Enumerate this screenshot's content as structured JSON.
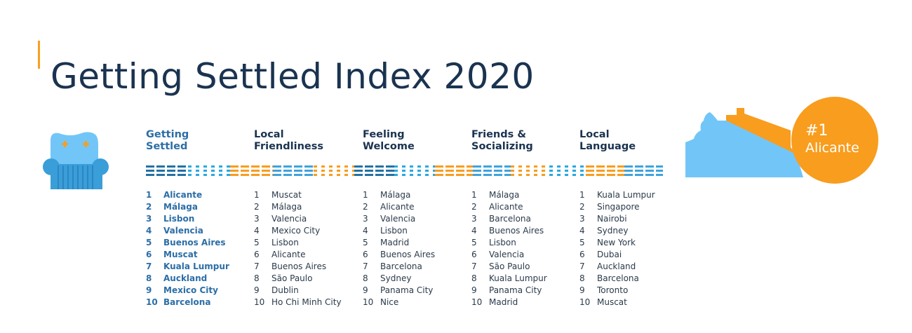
{
  "title": "Getting Settled Index 2020",
  "badge": {
    "rank": "#1",
    "city": "Alicante"
  },
  "colors": {
    "orange": "#f89d1e",
    "dark_blue": "#2471a3",
    "light_blue": "#29a9e0",
    "navy": "#1a3350"
  },
  "columns": [
    {
      "heading": [
        "Getting",
        "Settled"
      ],
      "items": [
        {
          "rank": "1",
          "city": "Alicante"
        },
        {
          "rank": "2",
          "city": "Málaga"
        },
        {
          "rank": "3",
          "city": "Lisbon"
        },
        {
          "rank": "4",
          "city": "Valencia"
        },
        {
          "rank": "5",
          "city": "Buenos Aires"
        },
        {
          "rank": "6",
          "city": "Muscat"
        },
        {
          "rank": "7",
          "city": "Kuala Lumpur"
        },
        {
          "rank": "8",
          "city": "Auckland"
        },
        {
          "rank": "9",
          "city": "Mexico City"
        },
        {
          "rank": "10",
          "city": "Barcelona"
        }
      ]
    },
    {
      "heading": [
        "Local",
        "Friendliness"
      ],
      "items": [
        {
          "rank": "1",
          "city": "Muscat"
        },
        {
          "rank": "2",
          "city": "Málaga"
        },
        {
          "rank": "3",
          "city": "Valencia"
        },
        {
          "rank": "4",
          "city": "Mexico City"
        },
        {
          "rank": "5",
          "city": "Lisbon"
        },
        {
          "rank": "6",
          "city": "Alicante"
        },
        {
          "rank": "7",
          "city": "Buenos Aires"
        },
        {
          "rank": "8",
          "city": "São Paulo"
        },
        {
          "rank": "9",
          "city": "Dublin"
        },
        {
          "rank": "10",
          "city": "Ho Chi Minh City"
        }
      ]
    },
    {
      "heading": [
        "Feeling",
        "Welcome"
      ],
      "items": [
        {
          "rank": "1",
          "city": "Málaga"
        },
        {
          "rank": "2",
          "city": "Alicante"
        },
        {
          "rank": "3",
          "city": "Valencia"
        },
        {
          "rank": "4",
          "city": "Lisbon"
        },
        {
          "rank": "5",
          "city": "Madrid"
        },
        {
          "rank": "6",
          "city": "Buenos Aires"
        },
        {
          "rank": "7",
          "city": "Barcelona"
        },
        {
          "rank": "8",
          "city": "Sydney"
        },
        {
          "rank": "9",
          "city": "Panama City"
        },
        {
          "rank": "10",
          "city": "Nice"
        }
      ]
    },
    {
      "heading": [
        "Friends &",
        "Socializing"
      ],
      "items": [
        {
          "rank": "1",
          "city": "Málaga"
        },
        {
          "rank": "2",
          "city": "Alicante"
        },
        {
          "rank": "3",
          "city": "Barcelona"
        },
        {
          "rank": "4",
          "city": "Buenos Aires"
        },
        {
          "rank": "5",
          "city": "Lisbon"
        },
        {
          "rank": "6",
          "city": "Valencia"
        },
        {
          "rank": "7",
          "city": "São Paulo"
        },
        {
          "rank": "8",
          "city": "Kuala Lumpur"
        },
        {
          "rank": "9",
          "city": "Panama City"
        },
        {
          "rank": "10",
          "city": "Madrid"
        }
      ]
    },
    {
      "heading": [
        "Local",
        "Language"
      ],
      "items": [
        {
          "rank": "1",
          "city": "Kuala Lumpur"
        },
        {
          "rank": "2",
          "city": "Singapore"
        },
        {
          "rank": "3",
          "city": "Nairobi"
        },
        {
          "rank": "4",
          "city": "Sydney"
        },
        {
          "rank": "5",
          "city": "New York"
        },
        {
          "rank": "6",
          "city": "Dubai"
        },
        {
          "rank": "7",
          "city": "Auckland"
        },
        {
          "rank": "8",
          "city": "Barcelona"
        },
        {
          "rank": "9",
          "city": "Toronto"
        },
        {
          "rank": "10",
          "city": "Muscat"
        }
      ]
    }
  ]
}
